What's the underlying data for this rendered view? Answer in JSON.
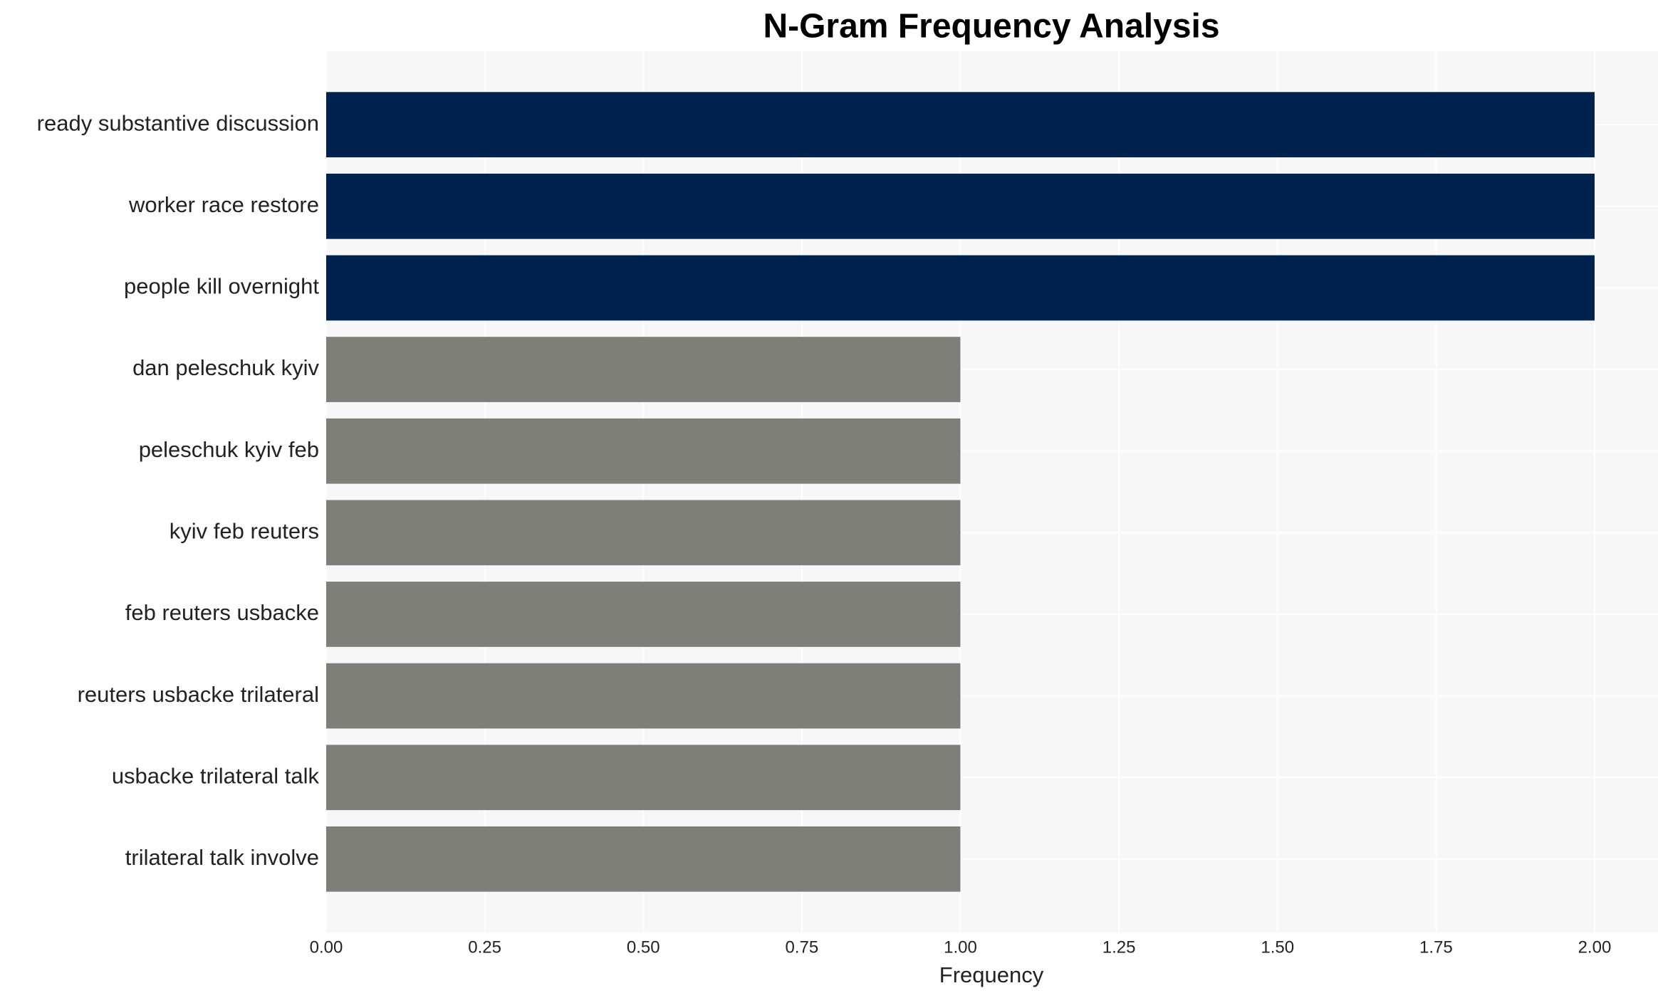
{
  "chart_data": {
    "type": "barh",
    "title": "N-Gram Frequency Analysis",
    "xlabel": "Frequency",
    "categories": [
      "ready substantive discussion",
      "worker race restore",
      "people kill overnight",
      "dan peleschuk kyiv",
      "peleschuk kyiv feb",
      "kyiv feb reuters",
      "feb reuters usbacke",
      "reuters usbacke trilateral",
      "usbacke trilateral talk",
      "trilateral talk involve"
    ],
    "values": [
      2,
      2,
      2,
      1,
      1,
      1,
      1,
      1,
      1,
      1
    ],
    "colors": [
      "#00224e",
      "#00224e",
      "#00224e",
      "#7f7f7a",
      "#7f7f7a",
      "#7f7f7a",
      "#7f7f7a",
      "#7f7f7a",
      "#7f7f7a",
      "#7f7f7a"
    ],
    "xlim": [
      0,
      2.1
    ],
    "xticks": [
      {
        "value": 0,
        "label": "0.00"
      },
      {
        "value": 0.25,
        "label": "0.25"
      },
      {
        "value": 0.5,
        "label": "0.50"
      },
      {
        "value": 0.75,
        "label": "0.75"
      },
      {
        "value": 1,
        "label": "1.00"
      },
      {
        "value": 1.25,
        "label": "1.25"
      },
      {
        "value": 1.5,
        "label": "1.50"
      },
      {
        "value": 1.75,
        "label": "1.75"
      },
      {
        "value": 2,
        "label": "2.00"
      }
    ],
    "grid": true
  }
}
